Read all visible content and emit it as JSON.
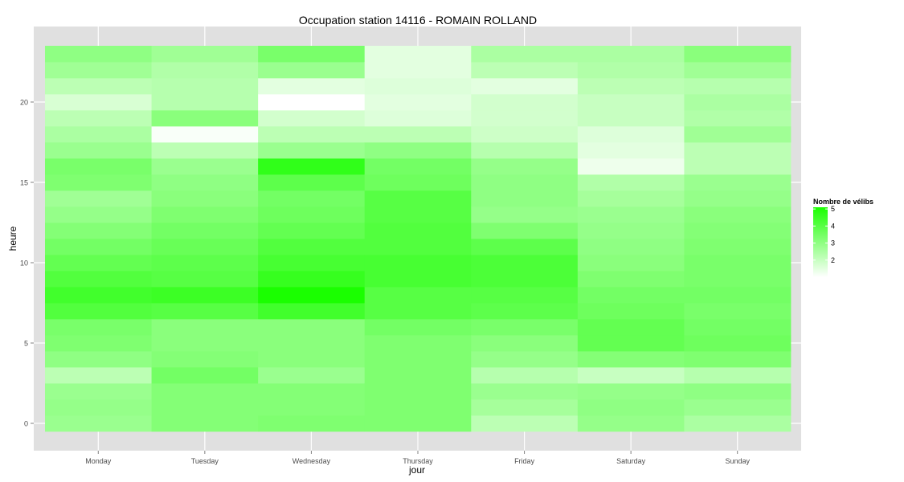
{
  "chart_data": {
    "type": "heatmap",
    "title": "Occupation station 14116 - ROMAIN ROLLAND",
    "xlabel": "jour",
    "ylabel": "heure",
    "x_categories": [
      "Monday",
      "Tuesday",
      "Wednesday",
      "Thursday",
      "Friday",
      "Saturday",
      "Sunday"
    ],
    "y_hours": [
      0,
      1,
      2,
      3,
      4,
      5,
      6,
      7,
      8,
      9,
      10,
      11,
      12,
      13,
      14,
      15,
      16,
      17,
      18,
      19,
      20,
      21,
      22,
      23
    ],
    "y_ticks": [
      0,
      5,
      10,
      15,
      20
    ],
    "ylim": [
      -0.5,
      23.5
    ],
    "values": {
      "Monday": [
        2.8,
        2.9,
        2.8,
        2.2,
        3.0,
        3.3,
        3.4,
        4.1,
        4.4,
        4.1,
        3.8,
        3.5,
        3.2,
        2.9,
        2.7,
        3.3,
        3.4,
        2.8,
        2.5,
        2.2,
        1.7,
        2.2,
        2.7,
        3.0
      ],
      "Tuesday": [
        3.2,
        3.2,
        3.2,
        3.5,
        3.2,
        3.1,
        3.1,
        4.0,
        4.5,
        4.0,
        3.9,
        3.7,
        3.5,
        3.3,
        3.1,
        3.0,
        2.8,
        2.2,
        1.1,
        3.1,
        2.3,
        2.3,
        2.4,
        2.7
      ],
      "Wednesday": [
        3.3,
        3.2,
        3.2,
        2.8,
        3.1,
        3.1,
        3.1,
        4.4,
        5.1,
        4.6,
        4.3,
        4.1,
        3.8,
        3.6,
        3.5,
        3.9,
        4.7,
        2.8,
        2.2,
        1.8,
        1.0,
        1.5,
        2.8,
        3.4
      ],
      "Thursday": [
        3.3,
        3.3,
        3.3,
        3.3,
        3.3,
        3.3,
        3.5,
        4.0,
        4.0,
        4.3,
        4.3,
        4.1,
        4.1,
        4.0,
        4.0,
        3.6,
        3.5,
        3.0,
        2.2,
        1.6,
        1.5,
        1.6,
        1.5,
        1.5
      ],
      "Friday": [
        2.2,
        2.6,
        2.8,
        2.3,
        2.9,
        3.1,
        3.4,
        3.9,
        4.0,
        4.2,
        4.2,
        3.9,
        3.3,
        2.9,
        3.0,
        3.0,
        2.9,
        2.3,
        1.9,
        1.8,
        1.8,
        1.5,
        2.2,
        2.5
      ],
      "Saturday": [
        2.9,
        3.0,
        2.9,
        2.0,
        3.2,
        3.8,
        3.8,
        3.6,
        3.5,
        3.3,
        3.1,
        3.0,
        2.9,
        2.8,
        2.6,
        2.4,
        1.3,
        1.5,
        1.6,
        2.0,
        2.0,
        2.2,
        2.4,
        2.5
      ],
      "Sunday": [
        2.5,
        2.8,
        3.0,
        2.3,
        3.3,
        3.6,
        3.5,
        3.4,
        3.5,
        3.4,
        3.4,
        3.3,
        3.2,
        3.1,
        2.9,
        2.8,
        2.2,
        2.2,
        2.7,
        2.4,
        2.5,
        2.3,
        2.7,
        3.1
      ]
    },
    "legend": {
      "title": "Nombre de vélibs",
      "ticks": [
        "2",
        "3",
        "4",
        "5"
      ],
      "tick_values": [
        2,
        3,
        4,
        5
      ],
      "range": [
        1,
        5.1
      ],
      "low_color": "#ffffff",
      "high_color": "#1aff00",
      "placement": "right"
    },
    "grid": true,
    "panel_background": "#e0e0e0",
    "gridline_color": "#ffffff"
  }
}
